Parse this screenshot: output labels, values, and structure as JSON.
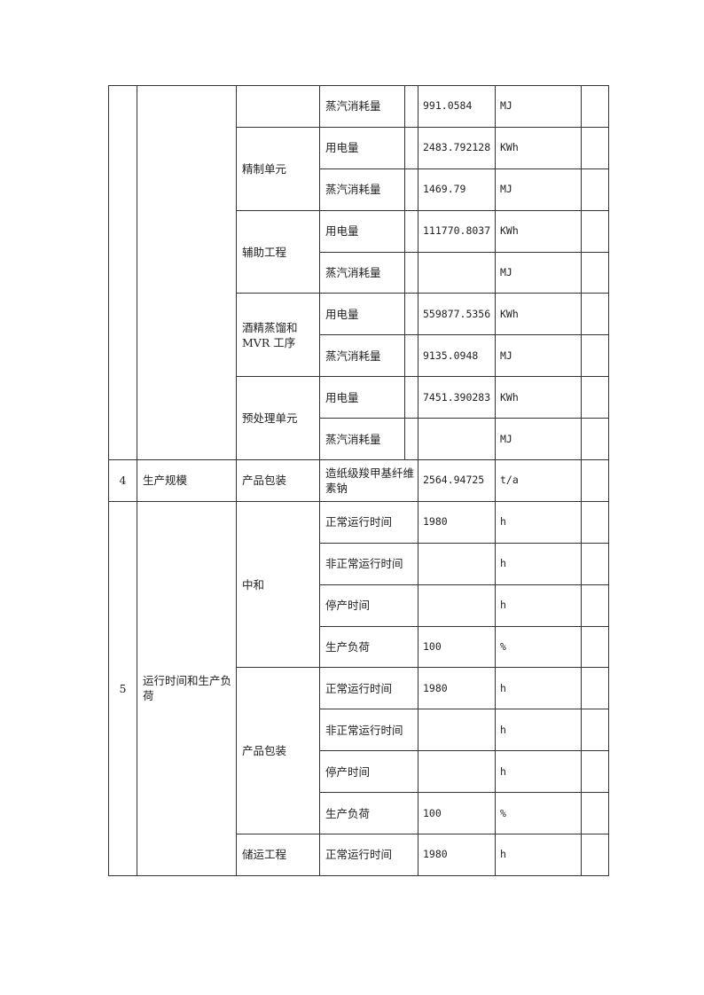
{
  "section3": {
    "rows": [
      {
        "unit": "",
        "item": "蒸汽消耗量",
        "value": "991.0584",
        "uom": "MJ"
      },
      {
        "unit": "精制单元",
        "item": "用电量",
        "value": "2483.792128",
        "uom": "KWh"
      },
      {
        "item": "蒸汽消耗量",
        "value": "1469.79",
        "uom": "MJ"
      },
      {
        "unit": "辅助工程",
        "item": "用电量",
        "value": "111770.8037",
        "uom": "KWh"
      },
      {
        "item": "蒸汽消耗量",
        "value": "",
        "uom": "MJ"
      },
      {
        "unit": "酒精蒸馏和MVR 工序",
        "item": "用电量",
        "value": "559877.5356",
        "uom": "KWh"
      },
      {
        "item": "蒸汽消耗量",
        "value": "9135.0948",
        "uom": "MJ"
      },
      {
        "unit": "预处理单元",
        "item": "用电量",
        "value": "7451.390283",
        "uom": "KWh"
      },
      {
        "item": "蒸汽消耗量",
        "value": "",
        "uom": "MJ"
      }
    ]
  },
  "section4": {
    "no": "4",
    "category": "生产规模",
    "unit": "产品包装",
    "item": "造纸级羧甲基纤维素钠",
    "value": "2564.94725",
    "uom": "t/a"
  },
  "section5": {
    "no": "5",
    "category": "运行时间和生产负荷",
    "groups": [
      {
        "unit": "中和",
        "rows": [
          {
            "item": "正常运行时间",
            "value": "1980",
            "uom": "h"
          },
          {
            "item": "非正常运行时间",
            "value": "",
            "uom": "h"
          },
          {
            "item": "停产时间",
            "value": "",
            "uom": "h"
          },
          {
            "item": "生产负荷",
            "value": "100",
            "uom": "%"
          }
        ]
      },
      {
        "unit": "产品包装",
        "rows": [
          {
            "item": "正常运行时间",
            "value": "1980",
            "uom": "h"
          },
          {
            "item": "非正常运行时间",
            "value": "",
            "uom": "h"
          },
          {
            "item": "停产时间",
            "value": "",
            "uom": "h"
          },
          {
            "item": "生产负荷",
            "value": "100",
            "uom": "%"
          }
        ]
      },
      {
        "unit": "储运工程",
        "rows": [
          {
            "item": "正常运行时间",
            "value": "1980",
            "uom": "h"
          }
        ]
      }
    ]
  }
}
